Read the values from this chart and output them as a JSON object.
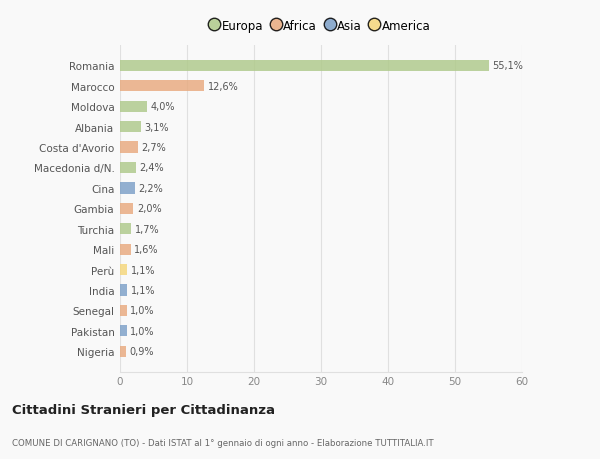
{
  "countries": [
    "Romania",
    "Marocco",
    "Moldova",
    "Albania",
    "Costa d'Avorio",
    "Macedonia d/N.",
    "Cina",
    "Gambia",
    "Turchia",
    "Mali",
    "Perù",
    "India",
    "Senegal",
    "Pakistan",
    "Nigeria"
  ],
  "values": [
    55.1,
    12.6,
    4.0,
    3.1,
    2.7,
    2.4,
    2.2,
    2.0,
    1.7,
    1.6,
    1.1,
    1.1,
    1.0,
    1.0,
    0.9
  ],
  "labels": [
    "55,1%",
    "12,6%",
    "4,0%",
    "3,1%",
    "2,7%",
    "2,4%",
    "2,2%",
    "2,0%",
    "1,7%",
    "1,6%",
    "1,1%",
    "1,1%",
    "1,0%",
    "1,0%",
    "0,9%"
  ],
  "colors": [
    "#aec98a",
    "#e8a97e",
    "#aec98a",
    "#aec98a",
    "#e8a97e",
    "#aec98a",
    "#7b9fc7",
    "#e8a97e",
    "#aec98a",
    "#e8a97e",
    "#f5d67a",
    "#7b9fc7",
    "#e8a97e",
    "#7b9fc7",
    "#e8a97e"
  ],
  "continent_labels": [
    "Europa",
    "Africa",
    "Asia",
    "America"
  ],
  "continent_colors": [
    "#aec98a",
    "#e8a97e",
    "#7b9fc7",
    "#f5d67a"
  ],
  "xlim": [
    0,
    60
  ],
  "xticks": [
    0,
    10,
    20,
    30,
    40,
    50,
    60
  ],
  "title": "Cittadini Stranieri per Cittadinanza",
  "subtitle": "COMUNE DI CARIGNANO (TO) - Dati ISTAT al 1° gennaio di ogni anno - Elaborazione TUTTITALIA.IT",
  "bg_color": "#f9f9f9",
  "grid_color": "#e0e0e0",
  "bar_height": 0.55
}
